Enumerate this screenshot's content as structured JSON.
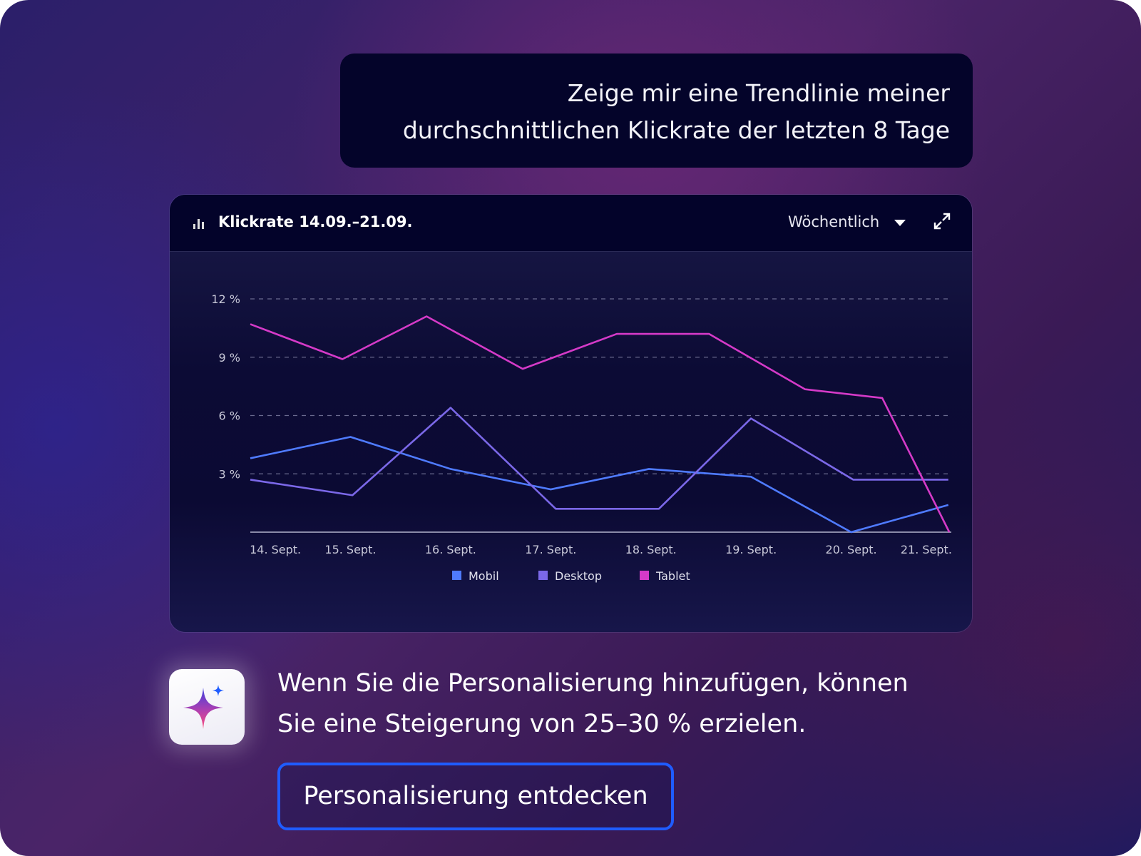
{
  "prompt": {
    "line1": "Zeige mir eine Trendlinie meiner",
    "line2": "durchschnittlichen Klickrate der letzten 8 Tage"
  },
  "chart_card": {
    "title": "Klickrate 14.09.–21.09.",
    "period_select": "Wöchentlich",
    "icon": "bar-chart-icon",
    "expand_icon": "expand-icon"
  },
  "chart_data": {
    "type": "line",
    "title": "Klickrate 14.09.–21.09.",
    "xlabel": "",
    "ylabel": "",
    "ylim": [
      0,
      12
    ],
    "xlim": [
      0,
      7
    ],
    "grid": true,
    "legend_position": "bottom-center",
    "y_ticks": [
      {
        "v": 3,
        "label": "3 %"
      },
      {
        "v": 6,
        "label": "6 %"
      },
      {
        "v": 9,
        "label": "9 %"
      },
      {
        "v": 12,
        "label": "12 %"
      }
    ],
    "x_ticks": [
      {
        "v": 0.25,
        "label": "14. Sept."
      },
      {
        "v": 1,
        "label": "15. Sept."
      },
      {
        "v": 2,
        "label": "16. Sept."
      },
      {
        "v": 3,
        "label": "17. Sept."
      },
      {
        "v": 4,
        "label": "18. Sept."
      },
      {
        "v": 5,
        "label": "19. Sept."
      },
      {
        "v": 6,
        "label": "20. Sept."
      },
      {
        "v": 6.75,
        "label": "21. Sept."
      }
    ],
    "series": [
      {
        "name": "Mobil",
        "color": "#4f7bff",
        "points": [
          [
            0,
            3.8
          ],
          [
            1,
            4.9
          ],
          [
            2,
            3.25
          ],
          [
            3,
            2.2
          ],
          [
            3.98,
            3.25
          ],
          [
            5,
            2.85
          ],
          [
            6,
            0
          ],
          [
            6.97,
            1.4
          ]
        ]
      },
      {
        "name": "Desktop",
        "color": "#7b68e8",
        "points": [
          [
            0,
            2.7
          ],
          [
            1.02,
            1.9
          ],
          [
            2,
            6.4
          ],
          [
            3.05,
            1.2
          ],
          [
            4.08,
            1.2
          ],
          [
            5,
            5.85
          ],
          [
            6.02,
            2.7
          ],
          [
            6.97,
            2.7
          ]
        ]
      },
      {
        "name": "Tablet",
        "color": "#d53ac8",
        "points": [
          [
            0,
            10.7
          ],
          [
            0.92,
            8.9
          ],
          [
            1.76,
            11.1
          ],
          [
            2.72,
            8.4
          ],
          [
            3.66,
            10.2
          ],
          [
            4.58,
            10.2
          ],
          [
            5.54,
            7.35
          ],
          [
            6.31,
            6.9
          ],
          [
            6.98,
            0
          ]
        ]
      }
    ]
  },
  "insight": {
    "icon": "sparkle-icon",
    "line1": "Wenn Sie die Personalisierung hinzufügen, können",
    "line2": "Sie eine Steigerung von 25–30 % erzielen."
  },
  "cta": {
    "label": "Personalisierung entdecken",
    "color": "#1f5cff"
  }
}
